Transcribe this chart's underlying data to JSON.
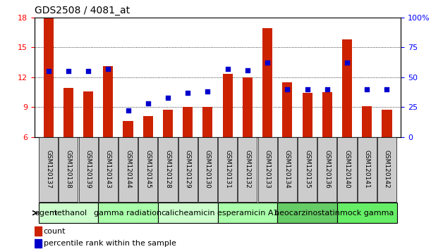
{
  "title": "GDS2508 / 4081_at",
  "samples": [
    "GSM120137",
    "GSM120138",
    "GSM120139",
    "GSM120143",
    "GSM120144",
    "GSM120145",
    "GSM120128",
    "GSM120129",
    "GSM120130",
    "GSM120131",
    "GSM120132",
    "GSM120133",
    "GSM120134",
    "GSM120135",
    "GSM120136",
    "GSM120140",
    "GSM120141",
    "GSM120142"
  ],
  "counts": [
    17.9,
    10.9,
    10.6,
    13.1,
    7.6,
    8.1,
    8.7,
    9.0,
    9.05,
    12.35,
    12.0,
    16.9,
    11.5,
    10.4,
    10.5,
    15.8,
    9.1,
    8.75
  ],
  "percentile_pct": [
    55,
    55,
    55,
    57,
    22,
    28,
    33,
    37,
    38,
    57,
    56,
    62,
    40,
    40,
    40,
    62,
    40,
    40
  ],
  "agents": [
    {
      "label": "methanol",
      "start": 0,
      "end": 3,
      "color": "#ccffcc"
    },
    {
      "label": "gamma radiation",
      "start": 3,
      "end": 6,
      "color": "#aaffaa"
    },
    {
      "label": "calicheamicin",
      "start": 6,
      "end": 9,
      "color": "#ccffcc"
    },
    {
      "label": "esperamicin A1",
      "start": 9,
      "end": 12,
      "color": "#aaffaa"
    },
    {
      "label": "neocarzinostatin",
      "start": 12,
      "end": 15,
      "color": "#66cc66"
    },
    {
      "label": "mock gamma",
      "start": 15,
      "end": 18,
      "color": "#66ee66"
    }
  ],
  "ylim_left": [
    6,
    18
  ],
  "ylim_right": [
    0,
    100
  ],
  "yticks_left": [
    6,
    9,
    12,
    15,
    18
  ],
  "yticks_right": [
    0,
    25,
    50,
    75,
    100
  ],
  "bar_color": "#cc2200",
  "dot_color": "#0000cc",
  "bar_width": 0.5,
  "title_fontsize": 10,
  "sample_fontsize": 6.5,
  "agent_fontsize": 8,
  "legend_fontsize": 8
}
